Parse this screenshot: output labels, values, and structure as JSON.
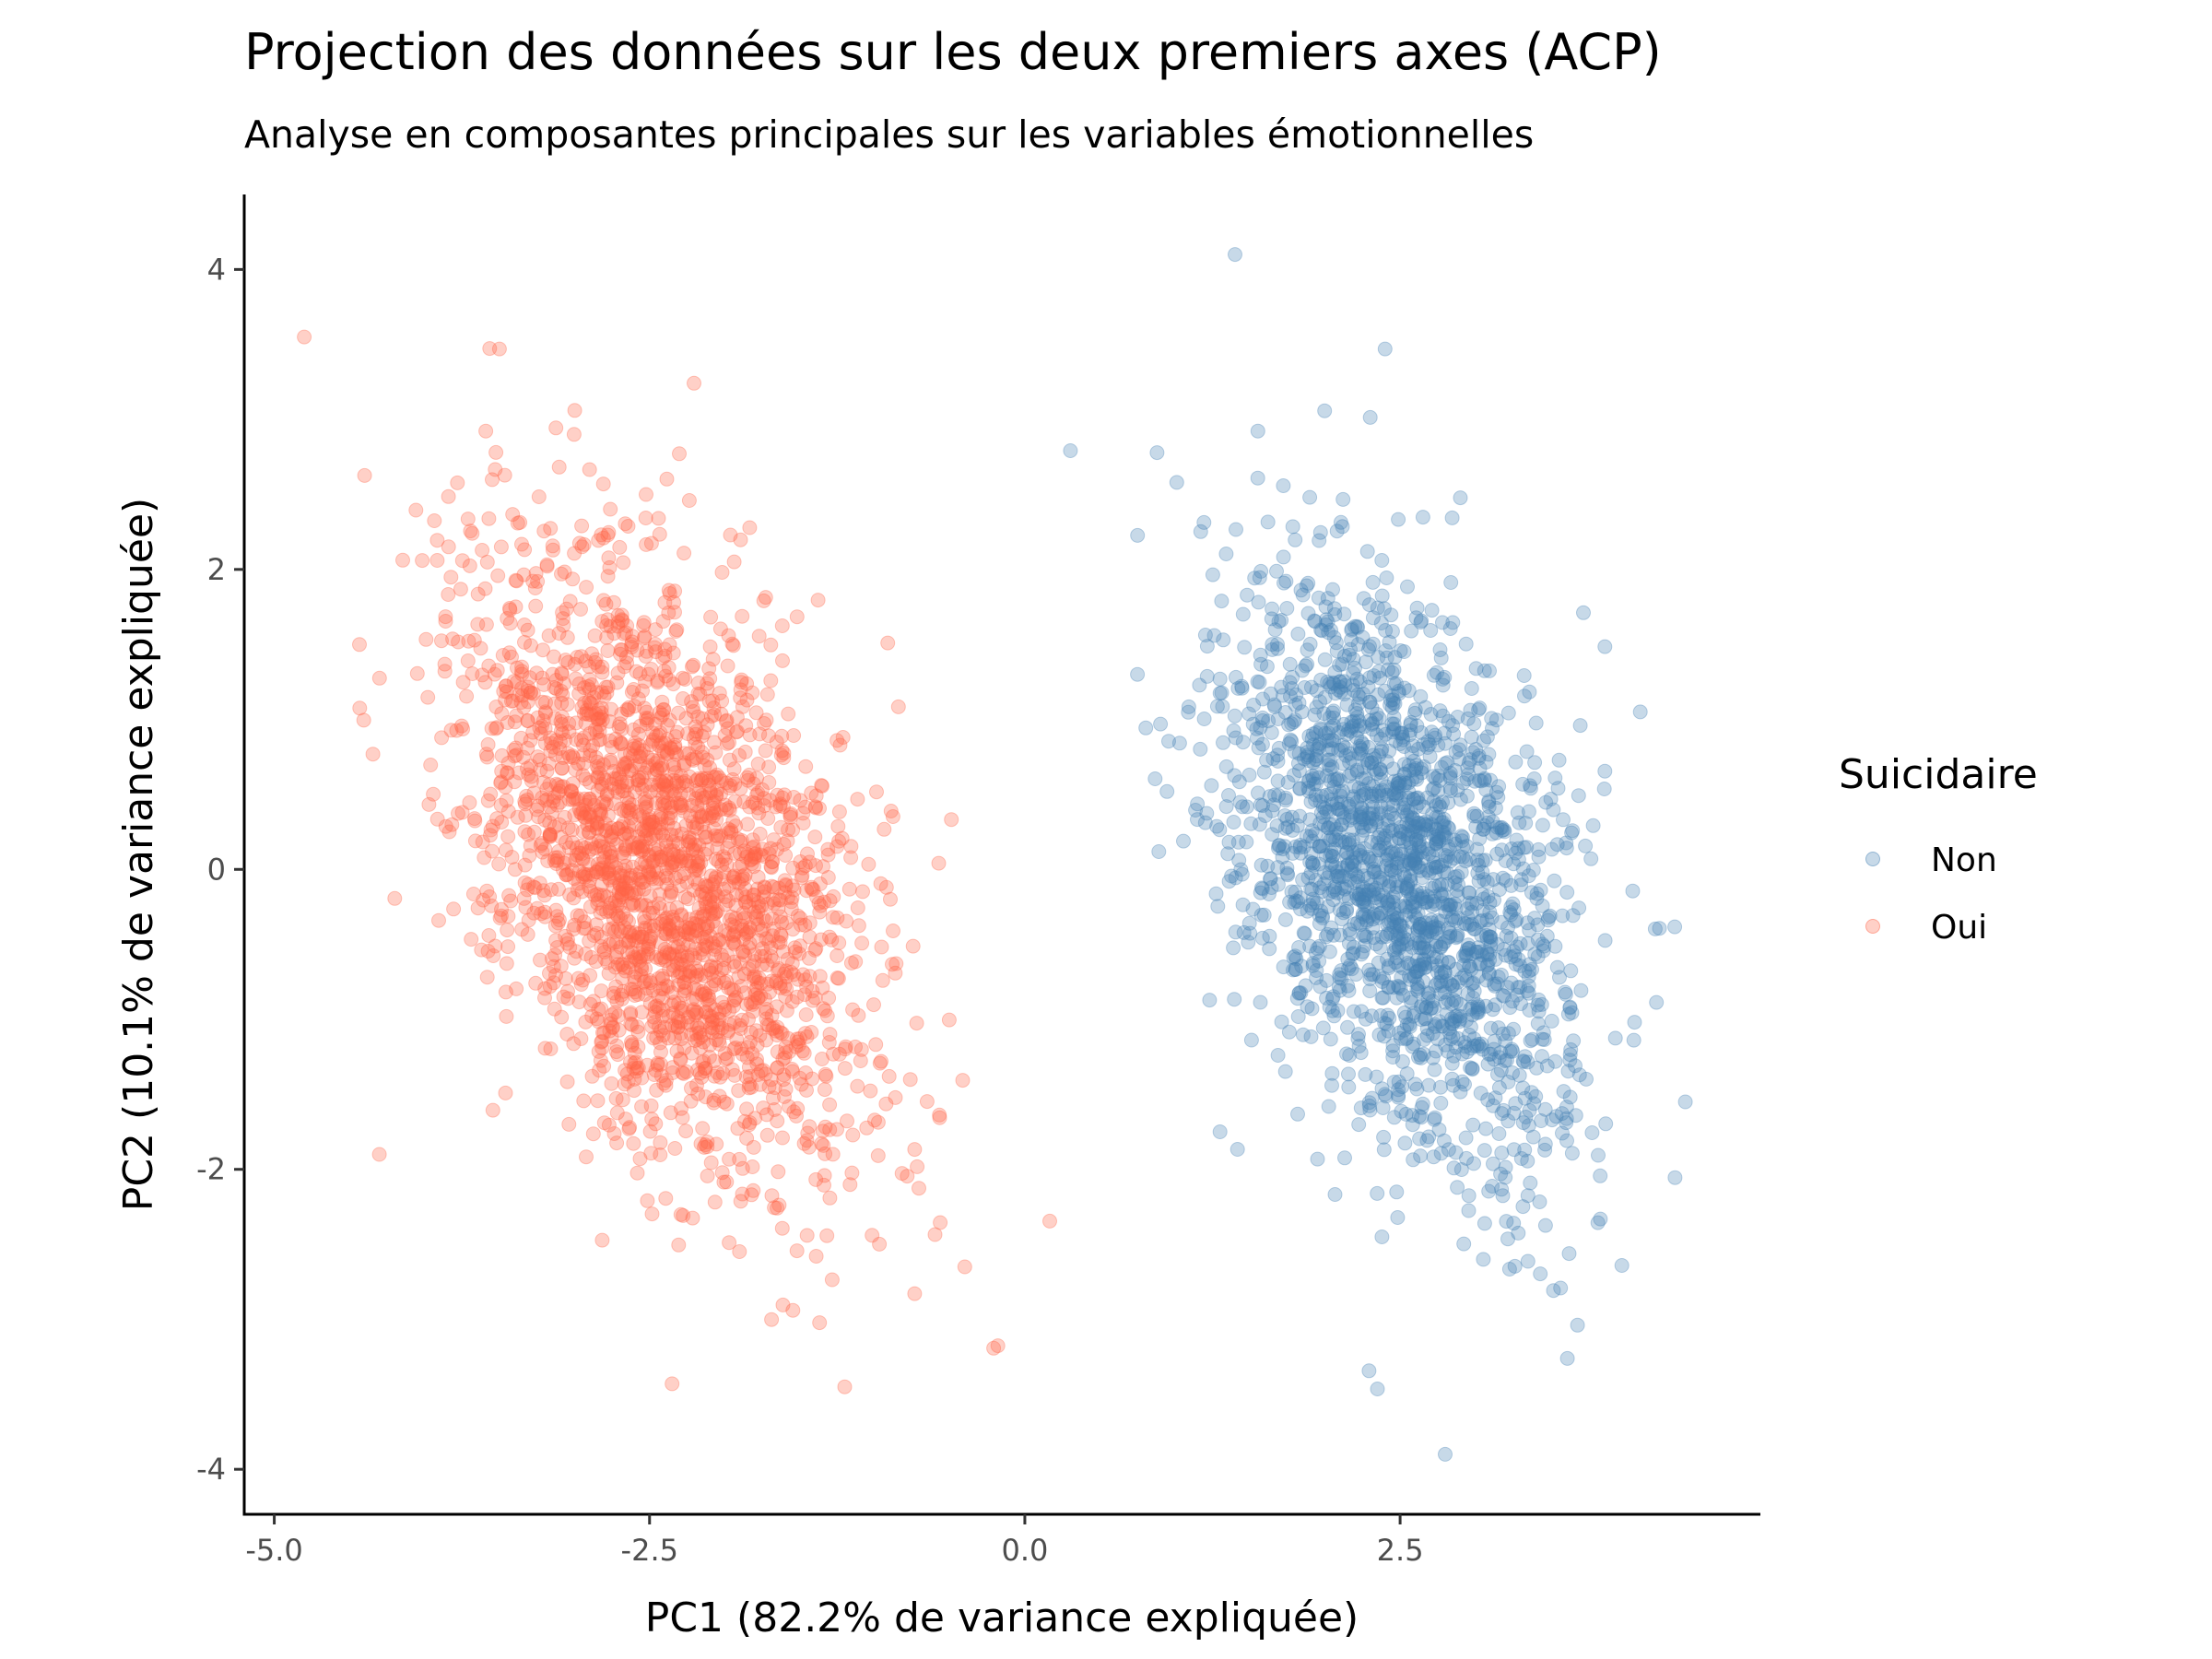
{
  "chart_data": {
    "type": "scatter",
    "title": "Projection des données sur les deux premiers axes (ACP)",
    "subtitle": "Analyse en composantes principales sur les variables émotionnelles",
    "xlabel": "PC1 (82.2% de variance expliquée)",
    "ylabel": "PC2 (10.1% de variance expliquée)",
    "xlim": [
      -5.2,
      4.9
    ],
    "ylim": [
      -4.3,
      4.5
    ],
    "x_ticks": [
      -5.0,
      -2.5,
      0.0,
      2.5
    ],
    "x_tick_labels": [
      "-5.0",
      "-2.5",
      "0.0",
      "2.5"
    ],
    "y_ticks": [
      -4,
      -2,
      0,
      2,
      4
    ],
    "y_tick_labels": [
      "-4",
      "-2",
      "0",
      "2",
      "4"
    ],
    "grid": false,
    "legend": {
      "title": "Suicidaire",
      "position": "right",
      "entries": [
        "Non",
        "Oui"
      ]
    },
    "series": [
      {
        "name": "Non",
        "color": "#4682B4",
        "opacity": 0.3,
        "center": [
          2.5,
          0.0
        ],
        "sd_x": 0.55,
        "sd_y": 0.95,
        "correlation": -0.4,
        "n_points": 2000,
        "outliers": [
          [
            1.4,
            4.1
          ],
          [
            2.4,
            3.47
          ],
          [
            2.8,
            -3.9
          ],
          [
            4.4,
            -1.55
          ],
          [
            4.1,
            1.05
          ],
          [
            0.75,
            1.3
          ],
          [
            1.3,
            -1.75
          ]
        ]
      },
      {
        "name": "Oui",
        "color": "#FF6347",
        "opacity": 0.3,
        "center": [
          -2.4,
          0.0
        ],
        "sd_x": 0.65,
        "sd_y": 1.0,
        "correlation": -0.45,
        "n_points": 2400,
        "outliers": [
          [
            -4.8,
            3.55
          ],
          [
            -3.5,
            3.47
          ],
          [
            -2.35,
            -3.43
          ],
          [
            -1.2,
            -3.45
          ],
          [
            -0.4,
            -2.65
          ],
          [
            -4.3,
            -1.9
          ]
        ]
      }
    ]
  }
}
